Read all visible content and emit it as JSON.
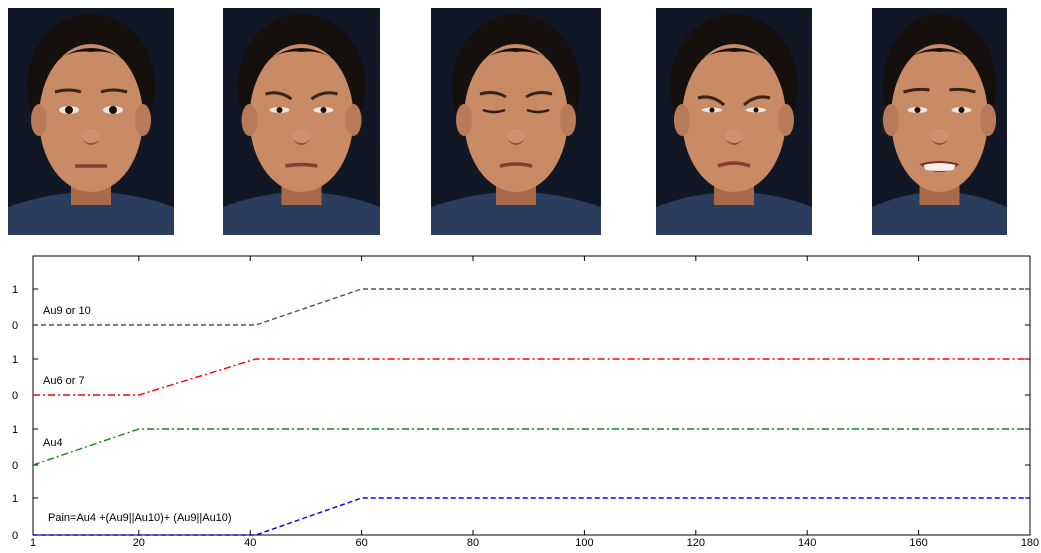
{
  "faces": [
    {
      "expression": "neutral"
    },
    {
      "expression": "brow-lowered"
    },
    {
      "expression": "eyes-closed"
    },
    {
      "expression": "nose-wrinkle"
    },
    {
      "expression": "grimace-teeth"
    }
  ],
  "chart_data": {
    "type": "line",
    "title": "",
    "xlabel": "",
    "ylabel": "",
    "x_ticks": [
      1,
      20,
      40,
      60,
      80,
      100,
      120,
      140,
      160,
      180
    ],
    "xlim": [
      1,
      180
    ],
    "grid": false,
    "series": [
      {
        "name": "Au9 or 10",
        "color": "#6b4a3e",
        "style": "dashed",
        "x": [
          1,
          41,
          60,
          180
        ],
        "y": [
          0,
          0,
          1,
          1
        ]
      },
      {
        "name": "Au6 or 7",
        "color": "#ff0000",
        "style": "dashdot",
        "x": [
          1,
          20,
          41,
          180
        ],
        "y": [
          0,
          0,
          1,
          1
        ]
      },
      {
        "name": "Au4",
        "color": "#138a13",
        "style": "dashdot",
        "x": [
          1,
          20,
          180
        ],
        "y": [
          0,
          1,
          1
        ]
      },
      {
        "name": "Pain=Au4 +(Au9||Au10)+ (Au9||Au10)",
        "color": "#0000ff",
        "style": "dashed",
        "x": [
          1,
          41,
          60,
          180
        ],
        "y": [
          0,
          0,
          1,
          1
        ]
      }
    ],
    "y_tick_labels": [
      "0",
      "1"
    ]
  }
}
